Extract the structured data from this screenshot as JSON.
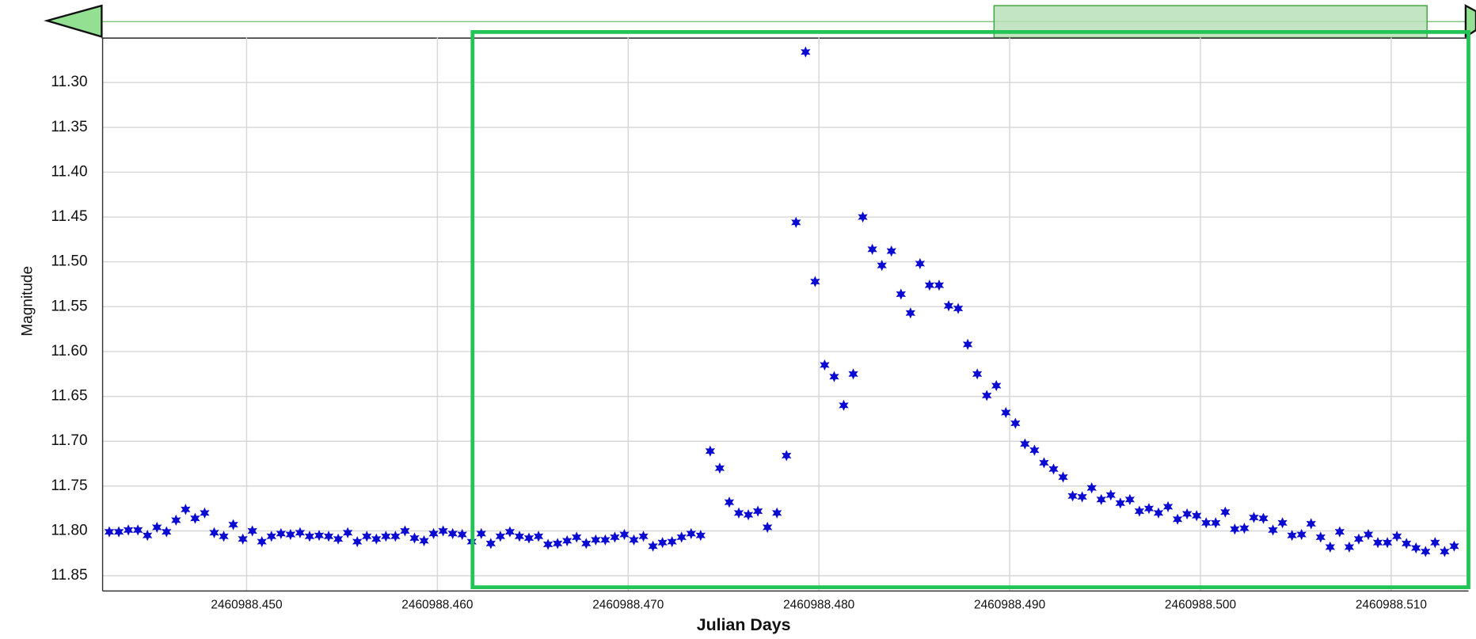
{
  "chart_data": {
    "type": "scatter",
    "x_label": "Julian Days",
    "y_label": "Magnitude",
    "color": "#0a0ad0",
    "grid": true,
    "y_inverted": true,
    "xlim": [
      2460988.44245,
      2460988.51405
    ],
    "ylim": [
      11.25,
      11.867
    ],
    "xticks": [
      {
        "value": 2460988.45,
        "label": "2460988.450"
      },
      {
        "value": 2460988.46,
        "label": "2460988.460"
      },
      {
        "value": 2460988.47,
        "label": "2460988.470"
      },
      {
        "value": 2460988.48,
        "label": "2460988.480"
      },
      {
        "value": 2460988.49,
        "label": "2460988.490"
      },
      {
        "value": 2460988.5,
        "label": "2460988.500"
      },
      {
        "value": 2460988.51,
        "label": "2460988.510"
      }
    ],
    "yticks": [
      {
        "value": 11.3,
        "label": "11.30"
      },
      11.35,
      {
        "value": 11.4,
        "label": "11.40"
      },
      11.45,
      {
        "value": 11.5,
        "label": "11.50"
      },
      11.55,
      {
        "value": 11.6,
        "label": "11.60"
      },
      11.65,
      {
        "value": 11.7,
        "label": "11.70"
      },
      11.75,
      {
        "value": 11.8,
        "label": "11.80"
      },
      11.85
    ],
    "x": [
      2460988.4428,
      2460988.4433,
      2460988.4438,
      2460988.4443,
      2460988.4448,
      2460988.4453,
      2460988.4458,
      2460988.4463,
      2460988.4468,
      2460988.4473,
      2460988.4478,
      2460988.4483,
      2460988.4488,
      2460988.4493,
      2460988.4498,
      2460988.4503,
      2460988.4508,
      2460988.4513,
      2460988.4518,
      2460988.4523,
      2460988.4528,
      2460988.4533,
      2460988.4538,
      2460988.4543,
      2460988.4548,
      2460988.4553,
      2460988.4558,
      2460988.4563,
      2460988.4568,
      2460988.4573,
      2460988.4578,
      2460988.4583,
      2460988.4588,
      2460988.4593,
      2460988.4598,
      2460988.4603,
      2460988.4608,
      2460988.4613,
      2460988.4618,
      2460988.4623,
      2460988.4628,
      2460988.4633,
      2460988.4638,
      2460988.4643,
      2460988.4648,
      2460988.4653,
      2460988.4658,
      2460988.4663,
      2460988.4668,
      2460988.4673,
      2460988.4678,
      2460988.4683,
      2460988.4688,
      2460988.4693,
      2460988.4698,
      2460988.4703,
      2460988.4708,
      2460988.4713,
      2460988.4718,
      2460988.4723,
      2460988.4728,
      2460988.4733,
      2460988.4738,
      2460988.4743,
      2460988.4748,
      2460988.4753,
      2460988.4758,
      2460988.4763,
      2460988.4768,
      2460988.4773,
      2460988.4778,
      2460988.4783,
      2460988.4788,
      2460988.4793,
      2460988.4798,
      2460988.4803,
      2460988.4808,
      2460988.4813,
      2460988.4818,
      2460988.4823,
      2460988.4828,
      2460988.4833,
      2460988.4838,
      2460988.4843,
      2460988.4848,
      2460988.4853,
      2460988.4858,
      2460988.4863,
      2460988.4868,
      2460988.4873,
      2460988.4878,
      2460988.4883,
      2460988.4888,
      2460988.4893,
      2460988.4898,
      2460988.4903,
      2460988.4908,
      2460988.4913,
      2460988.4918,
      2460988.4923,
      2460988.4928,
      2460988.4933,
      2460988.4938,
      2460988.4943,
      2460988.4948,
      2460988.4953,
      2460988.4958,
      2460988.4963,
      2460988.4968,
      2460988.4973,
      2460988.4978,
      2460988.4983,
      2460988.4988,
      2460988.4993,
      2460988.4998,
      2460988.5003,
      2460988.5008,
      2460988.5013,
      2460988.5018,
      2460988.5023,
      2460988.5028,
      2460988.5033,
      2460988.5038,
      2460988.5043,
      2460988.5048,
      2460988.5053,
      2460988.5058,
      2460988.5063,
      2460988.5068,
      2460988.5073,
      2460988.5078,
      2460988.5083,
      2460988.5088,
      2460988.5093,
      2460988.5098,
      2460988.5103,
      2460988.5108,
      2460988.5113,
      2460988.5118,
      2460988.5123,
      2460988.5128,
      2460988.5133
    ],
    "values": [
      11.801,
      11.801,
      11.799,
      11.799,
      11.805,
      11.796,
      11.801,
      11.788,
      11.776,
      11.786,
      11.78,
      11.802,
      11.806,
      11.793,
      11.809,
      11.8,
      11.812,
      11.806,
      11.803,
      11.804,
      11.802,
      11.806,
      11.805,
      11.806,
      11.809,
      11.802,
      11.812,
      11.806,
      11.809,
      11.806,
      11.806,
      11.8,
      11.808,
      11.811,
      11.803,
      11.8,
      11.803,
      11.804,
      11.812,
      11.803,
      11.814,
      11.806,
      11.801,
      11.806,
      11.808,
      11.806,
      11.815,
      11.814,
      11.811,
      11.807,
      11.814,
      11.81,
      11.81,
      11.807,
      11.804,
      11.81,
      11.806,
      11.817,
      11.813,
      11.812,
      11.807,
      11.803,
      11.805,
      11.711,
      11.73,
      11.768,
      11.78,
      11.782,
      11.778,
      11.796,
      11.78,
      11.716,
      11.456,
      11.266,
      11.522,
      11.615,
      11.628,
      11.66,
      11.625,
      11.45,
      11.486,
      11.504,
      11.488,
      11.536,
      11.557,
      11.502,
      11.526,
      11.526,
      11.549,
      11.552,
      11.592,
      11.625,
      11.649,
      11.638,
      11.668,
      11.68,
      11.703,
      11.71,
      11.724,
      11.731,
      11.74,
      11.761,
      11.762,
      11.752,
      11.765,
      11.76,
      11.769,
      11.765,
      11.778,
      11.775,
      11.78,
      11.773,
      11.787,
      11.781,
      11.783,
      11.791,
      11.791,
      11.779,
      11.798,
      11.797,
      11.785,
      11.786,
      11.799,
      11.791,
      11.805,
      11.804,
      11.792,
      11.807,
      11.818,
      11.801,
      11.818,
      11.809,
      11.804,
      11.813,
      11.813,
      11.806,
      11.814,
      11.819,
      11.823,
      11.813,
      11.823,
      11.817
    ]
  }
}
